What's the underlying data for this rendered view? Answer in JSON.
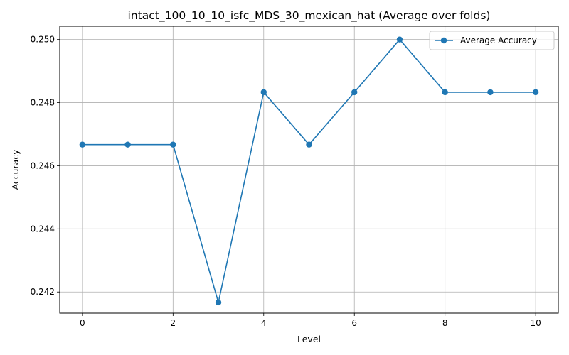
{
  "chart_data": {
    "type": "line",
    "title": "intact_100_10_10_isfc_MDS_30_mexican_hat (Average over folds)",
    "xlabel": "Level",
    "ylabel": "Accuracy",
    "xlim": [
      -0.5,
      10.5
    ],
    "ylim": [
      0.24133,
      0.25042
    ],
    "xticks": [
      0,
      2,
      4,
      6,
      8,
      10
    ],
    "xtick_labels": [
      "0",
      "2",
      "4",
      "6",
      "8",
      "10"
    ],
    "yticks": [
      0.242,
      0.244,
      0.246,
      0.248,
      0.25
    ],
    "ytick_labels": [
      "0.242",
      "0.244",
      "0.246",
      "0.248",
      "0.250"
    ],
    "grid": true,
    "legend_position": "upper right",
    "x": [
      0,
      1,
      2,
      3,
      4,
      5,
      6,
      7,
      8,
      9,
      10
    ],
    "series": [
      {
        "name": "Average Accuracy",
        "color": "#1f77b4",
        "marker": "circle",
        "values": [
          0.24667,
          0.24667,
          0.24667,
          0.24167,
          0.24833,
          0.24667,
          0.24833,
          0.25,
          0.24833,
          0.24833,
          0.24833
        ]
      }
    ]
  }
}
